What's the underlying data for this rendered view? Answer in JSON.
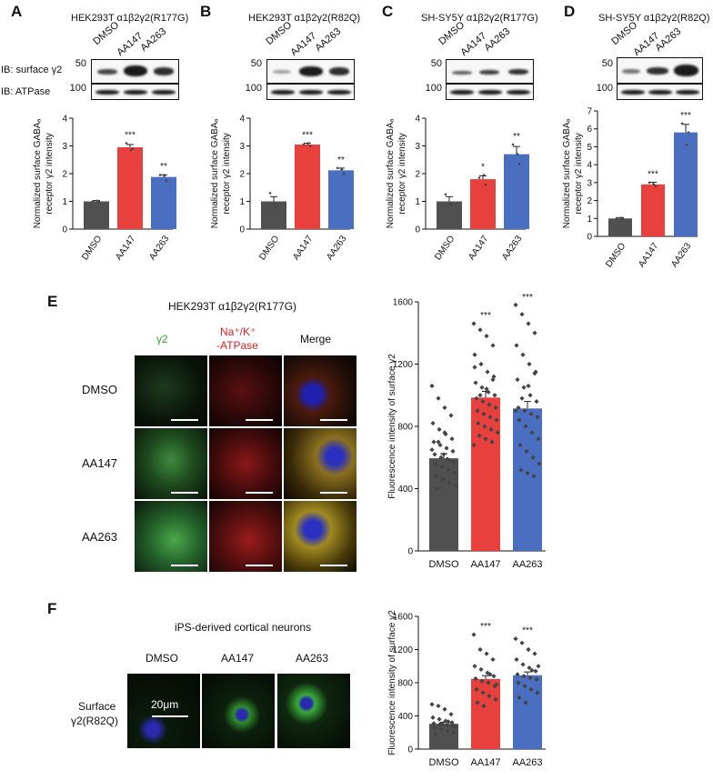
{
  "colors": {
    "dmso": "#505050",
    "aa147": "#e8403c",
    "aa263": "#4a6fc0",
    "green": "#2fbf2f",
    "red": "#e02020"
  },
  "panels": {
    "A": {
      "letter": "A",
      "title": "HEK293T α1β2γ2(R177G)",
      "lanes": [
        "DMSO",
        "AA147",
        "AA263"
      ],
      "ib_labels": [
        "IB: surface γ2",
        "IB: ATPase"
      ],
      "mw": [
        "50",
        "100"
      ]
    },
    "B": {
      "letter": "B",
      "title": "HEK293T α1β2γ2(R82Q)",
      "lanes": [
        "DMSO",
        "AA147",
        "AA263"
      ],
      "mw": [
        "50",
        "100"
      ]
    },
    "C": {
      "letter": "C",
      "title": "SH-SY5Y α1β2γ2(R177G)",
      "lanes": [
        "DMSO",
        "AA147",
        "AA263"
      ],
      "mw": [
        "50",
        "100"
      ]
    },
    "D": {
      "letter": "D",
      "title": "SH-SY5Y α1β2γ2(R82Q)",
      "lanes": [
        "DMSO",
        "AA147",
        "AA263"
      ],
      "mw": [
        "50",
        "100"
      ]
    },
    "E": {
      "letter": "E",
      "title": "HEK293T α1β2γ2(R177G)",
      "columns": [
        "γ2",
        "Na⁺/K⁺",
        "-ATPase",
        "Merge"
      ],
      "rows": [
        "DMSO",
        "AA147",
        "AA263"
      ]
    },
    "F": {
      "letter": "F",
      "title": "iPS-derived cortical neurons",
      "columns": [
        "DMSO",
        "AA147",
        "AA263"
      ],
      "row_label": [
        "Surface",
        "γ2(R82Q)"
      ],
      "scale": "20μm"
    }
  },
  "chart_data": [
    {
      "id": "A",
      "type": "bar",
      "categories": [
        "DMSO",
        "AA147",
        "AA263"
      ],
      "values": [
        1.0,
        2.95,
        1.88
      ],
      "errors": [
        0.03,
        0.1,
        0.08
      ],
      "points": [
        [
          1.0,
          0.98,
          1.02
        ],
        [
          3.1,
          2.9,
          2.85
        ],
        [
          1.95,
          1.75,
          1.93
        ]
      ],
      "significance": [
        "",
        "***",
        "**"
      ],
      "ylabel": [
        "Normalized surface GABAₐ",
        "receptor γ2 intensity"
      ],
      "ylim": [
        0,
        4
      ],
      "yticks": [
        0,
        1,
        2,
        3,
        4
      ]
    },
    {
      "id": "B",
      "type": "bar",
      "categories": [
        "DMSO",
        "AA147",
        "AA263"
      ],
      "values": [
        1.0,
        3.05,
        2.12
      ],
      "errors": [
        0.17,
        0.05,
        0.08
      ],
      "points": [
        [
          1.3,
          0.8,
          0.9
        ],
        [
          3.05,
          3.0,
          3.1
        ],
        [
          2.2,
          2.0,
          2.15
        ]
      ],
      "significance": [
        "",
        "***",
        "**"
      ],
      "ylabel": [
        "Normalized surface GABAₐ",
        "receptor γ2 intensity"
      ],
      "ylim": [
        0,
        4
      ],
      "yticks": [
        0,
        1,
        2,
        3,
        4
      ]
    },
    {
      "id": "C",
      "type": "bar",
      "categories": [
        "DMSO",
        "AA147",
        "AA263"
      ],
      "values": [
        1.0,
        1.8,
        2.7
      ],
      "errors": [
        0.17,
        0.12,
        0.28
      ],
      "points": [
        [
          1.25,
          0.85,
          0.9
        ],
        [
          1.85,
          1.6,
          1.95
        ],
        [
          3.05,
          2.35,
          2.7
        ]
      ],
      "significance": [
        "",
        "*",
        "**"
      ],
      "ylabel": [
        "Normalized surface GABAₐ",
        "receptor γ2 intensity"
      ],
      "ylim": [
        0,
        4
      ],
      "yticks": [
        0,
        1,
        2,
        3,
        4
      ]
    },
    {
      "id": "D",
      "type": "bar",
      "categories": [
        "DMSO",
        "AA147",
        "AA263"
      ],
      "values": [
        1.0,
        2.9,
        5.8
      ],
      "errors": [
        0.05,
        0.12,
        0.45
      ],
      "points": [
        [
          1.0,
          0.98,
          1.03
        ],
        [
          3.0,
          2.8,
          2.9
        ],
        [
          6.3,
          5.8,
          5.1
        ]
      ],
      "significance": [
        "",
        "***",
        "***"
      ],
      "ylabel": [
        "Normalized surface GABAₐ",
        "receptor γ2 intensity"
      ],
      "ylim": [
        0,
        7
      ],
      "yticks": [
        0,
        1,
        2,
        3,
        4,
        5,
        6,
        7
      ]
    },
    {
      "id": "E",
      "type": "bar",
      "categories": [
        "DMSO",
        "AA147",
        "AA263"
      ],
      "values": [
        595,
        985,
        915
      ],
      "errors": [
        30,
        40,
        45
      ],
      "points": [
        [
          1060,
          980,
          920,
          870,
          820,
          780,
          750,
          720,
          700,
          680,
          660,
          640,
          620,
          600,
          590,
          570,
          560,
          540,
          520,
          500,
          480,
          460,
          440,
          420,
          400,
          620,
          580,
          650,
          700,
          760
        ],
        [
          1460,
          1420,
          1380,
          1320,
          1260,
          1200,
          1150,
          1120,
          1080,
          1050,
          1020,
          1000,
          980,
          960,
          940,
          920,
          900,
          880,
          860,
          840,
          820,
          800,
          780,
          760,
          740,
          720,
          700,
          680,
          1000,
          1040,
          1100,
          1180
        ],
        [
          1580,
          1520,
          1460,
          1400,
          1320,
          1260,
          1200,
          1150,
          1100,
          1050,
          1000,
          960,
          920,
          900,
          880,
          860,
          840,
          800,
          760,
          720,
          680,
          640,
          600,
          560,
          520,
          500,
          480,
          900,
          980,
          1060,
          1140
        ]
      ],
      "significance": [
        "",
        "***",
        "***"
      ],
      "ylabel": [
        "Fluorescence intensity of surface γ2"
      ],
      "ylim": [
        0,
        1600
      ],
      "yticks": [
        0,
        400,
        800,
        1200,
        1600
      ]
    },
    {
      "id": "F",
      "type": "bar",
      "categories": [
        "DMSO",
        "AA147",
        "AA263"
      ],
      "values": [
        305,
        845,
        890
      ],
      "errors": [
        20,
        40,
        40
      ],
      "points": [
        [
          540,
          520,
          480,
          420,
          380,
          360,
          340,
          320,
          310,
          300,
          290,
          280,
          260,
          240,
          220,
          200,
          180,
          300,
          330,
          270
        ],
        [
          1380,
          1200,
          1150,
          1080,
          1000,
          960,
          920,
          880,
          850,
          820,
          800,
          760,
          720,
          680,
          640,
          600,
          560,
          520,
          900,
          780
        ],
        [
          1330,
          1280,
          1200,
          1150,
          1080,
          1020,
          980,
          940,
          900,
          880,
          860,
          840,
          800,
          760,
          720,
          680,
          620,
          560,
          950,
          1000
        ]
      ],
      "significance": [
        "",
        "***",
        "***"
      ],
      "ylabel": [
        "Fluorescence intensity of surface γ2"
      ],
      "ylim": [
        0,
        1600
      ],
      "yticks": [
        0,
        400,
        800,
        1200,
        1600
      ]
    }
  ]
}
